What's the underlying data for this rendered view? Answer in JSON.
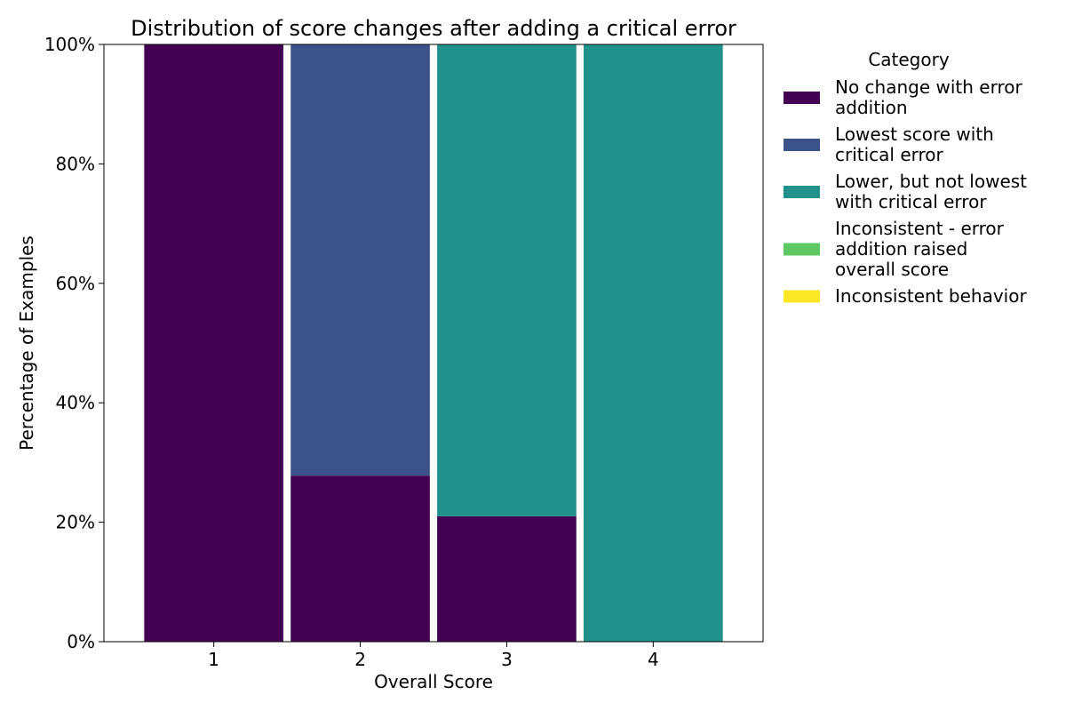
{
  "chart_data": {
    "type": "bar",
    "stacked": true,
    "title": "Distribution of score changes after adding a critical error",
    "xlabel": "Overall Score",
    "ylabel": "Percentage of Examples",
    "categories": [
      "1",
      "2",
      "3",
      "4"
    ],
    "ylim": [
      0,
      100
    ],
    "yticks": [
      "0%",
      "20%",
      "40%",
      "60%",
      "80%",
      "100%"
    ],
    "ytick_values": [
      0,
      20,
      40,
      60,
      80,
      100
    ],
    "grid": false,
    "legend": {
      "title": "Category",
      "placement": "outside-right"
    },
    "series": [
      {
        "name": "No change with error addition",
        "legend_lines": [
          "No change with error",
          "addition"
        ],
        "color": "#440154",
        "values": [
          100,
          27.8,
          21,
          0
        ]
      },
      {
        "name": "Lowest score with critical error",
        "legend_lines": [
          "Lowest score with",
          "critical error"
        ],
        "color": "#3b528b",
        "values": [
          0,
          72.2,
          0,
          0
        ]
      },
      {
        "name": "Lower, but not lowest with critical error",
        "legend_lines": [
          "Lower, but not lowest",
          "with critical error"
        ],
        "color": "#21918c",
        "values": [
          0,
          0,
          79,
          100
        ]
      },
      {
        "name": "Inconsistent - error addition raised overall score",
        "legend_lines": [
          "Inconsistent - error",
          "addition raised",
          "overall score"
        ],
        "color": "#5ec962",
        "values": [
          0,
          0,
          0,
          0
        ]
      },
      {
        "name": "Inconsistent behavior",
        "legend_lines": [
          "Inconsistent behavior"
        ],
        "color": "#fde725",
        "values": [
          0,
          0,
          0,
          0
        ]
      }
    ]
  }
}
